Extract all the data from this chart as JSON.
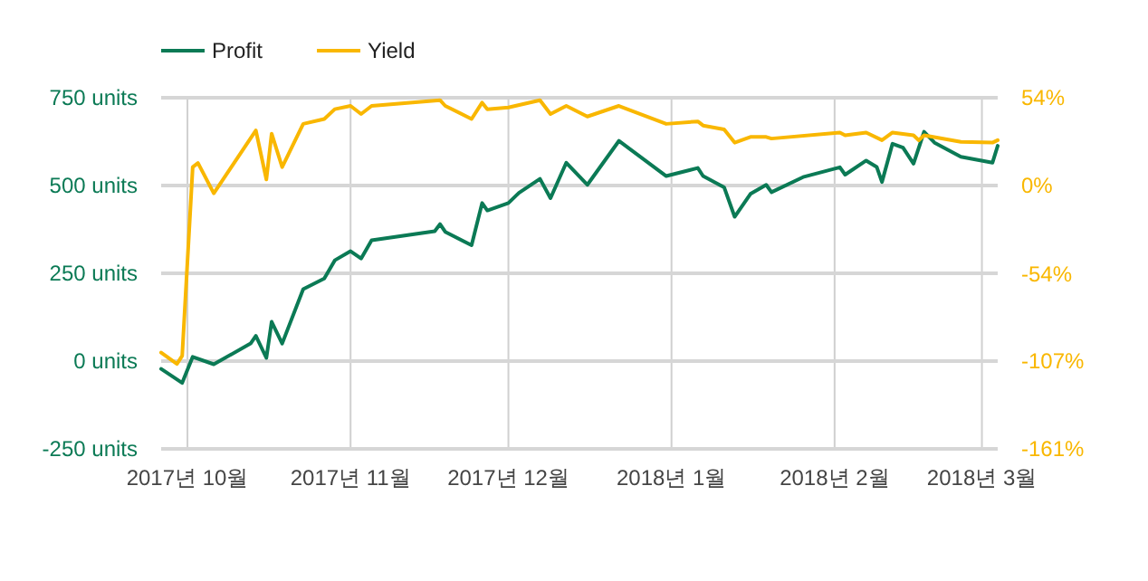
{
  "chart_data": {
    "type": "line",
    "legend": "top",
    "grid": true,
    "xlim": [
      "2017-09-26",
      "2018-03-04"
    ],
    "xticks": [
      {
        "value": "2017-10-01",
        "label": "2017년 10월"
      },
      {
        "value": "2017-11-01",
        "label": "2017년 11월"
      },
      {
        "value": "2017-12-01",
        "label": "2017년 12월"
      },
      {
        "value": "2018-01-01",
        "label": "2018년 1월"
      },
      {
        "value": "2018-02-01",
        "label": "2018년 2월"
      },
      {
        "value": "2018-03-01",
        "label": "2018년 3월"
      }
    ],
    "ylim": [
      -250,
      750
    ],
    "yticks": [
      {
        "value": -250,
        "label": "-250 units"
      },
      {
        "value": 0,
        "label": "0 units"
      },
      {
        "value": 250,
        "label": "250 units"
      },
      {
        "value": 500,
        "label": "500 units"
      },
      {
        "value": 750,
        "label": "750 units"
      }
    ],
    "y2lim": [
      -161,
      54
    ],
    "y2ticks": [
      {
        "value": -161,
        "label": "-161%"
      },
      {
        "value": -107,
        "label": "-107%"
      },
      {
        "value": -54,
        "label": "-54%"
      },
      {
        "value": 0,
        "label": "0%"
      },
      {
        "value": 54,
        "label": "54%"
      }
    ],
    "series": [
      {
        "name": "Profit",
        "color": "#0b7a55",
        "x": [
          "2017-09-26",
          "2017-09-30",
          "2017-10-02",
          "2017-10-06",
          "2017-10-13",
          "2017-10-14",
          "2017-10-16",
          "2017-10-17",
          "2017-10-19",
          "2017-10-23",
          "2017-10-27",
          "2017-10-29",
          "2017-11-01",
          "2017-11-03",
          "2017-11-05",
          "2017-11-17",
          "2017-11-18",
          "2017-11-19",
          "2017-11-24",
          "2017-11-26",
          "2017-11-27",
          "2017-12-01",
          "2017-12-03",
          "2017-12-07",
          "2017-12-09",
          "2017-12-12",
          "2017-12-16",
          "2017-12-22",
          "2017-12-31",
          "2018-01-06",
          "2018-01-07",
          "2018-01-11",
          "2018-01-13",
          "2018-01-16",
          "2018-01-19",
          "2018-01-20",
          "2018-01-26",
          "2018-02-02",
          "2018-02-03",
          "2018-02-07",
          "2018-02-09",
          "2018-02-10",
          "2018-02-12",
          "2018-02-14",
          "2018-02-16",
          "2018-02-18",
          "2018-02-20",
          "2018-02-25",
          "2018-03-03",
          "2018-03-04"
        ],
        "values": [
          -22,
          -62,
          12,
          -9,
          50,
          72,
          9,
          112,
          50,
          205,
          235,
          287,
          313,
          292,
          344,
          370,
          390,
          368,
          330,
          450,
          429,
          450,
          479,
          519,
          464,
          565,
          502,
          627,
          527,
          550,
          527,
          495,
          411,
          476,
          502,
          481,
          524,
          552,
          531,
          571,
          553,
          510,
          619,
          608,
          562,
          653,
          622,
          582,
          565,
          613
        ]
      },
      {
        "name": "Yield",
        "color": "#f9b700",
        "axis": "y2",
        "x": [
          "2017-09-26",
          "2017-09-29",
          "2017-09-30",
          "2017-10-02",
          "2017-10-03",
          "2017-10-06",
          "2017-10-14",
          "2017-10-16",
          "2017-10-17",
          "2017-10-19",
          "2017-10-23",
          "2017-10-27",
          "2017-10-29",
          "2017-11-01",
          "2017-11-03",
          "2017-11-05",
          "2017-11-18",
          "2017-11-19",
          "2017-11-24",
          "2017-11-26",
          "2017-11-27",
          "2017-12-01",
          "2017-12-07",
          "2017-12-09",
          "2017-12-12",
          "2017-12-16",
          "2017-12-22",
          "2017-12-31",
          "2018-01-06",
          "2018-01-07",
          "2018-01-11",
          "2018-01-13",
          "2018-01-16",
          "2018-01-19",
          "2018-01-20",
          "2018-02-02",
          "2018-02-03",
          "2018-02-07",
          "2018-02-10",
          "2018-02-12",
          "2018-02-16",
          "2018-02-17",
          "2018-02-18",
          "2018-02-25",
          "2018-03-03",
          "2018-03-04"
        ],
        "values": [
          -102,
          -109,
          -104,
          11.5,
          14,
          -4.5,
          34,
          4,
          32,
          11.5,
          38,
          41,
          47,
          49,
          44,
          49,
          52.5,
          49,
          41,
          51,
          47,
          48,
          52.5,
          44,
          49,
          42.5,
          49,
          38,
          39.5,
          37,
          34.6,
          26.5,
          30,
          30,
          29,
          32.7,
          31,
          32.7,
          28,
          32.7,
          31,
          28,
          31,
          27,
          26.5,
          28
        ]
      }
    ]
  }
}
